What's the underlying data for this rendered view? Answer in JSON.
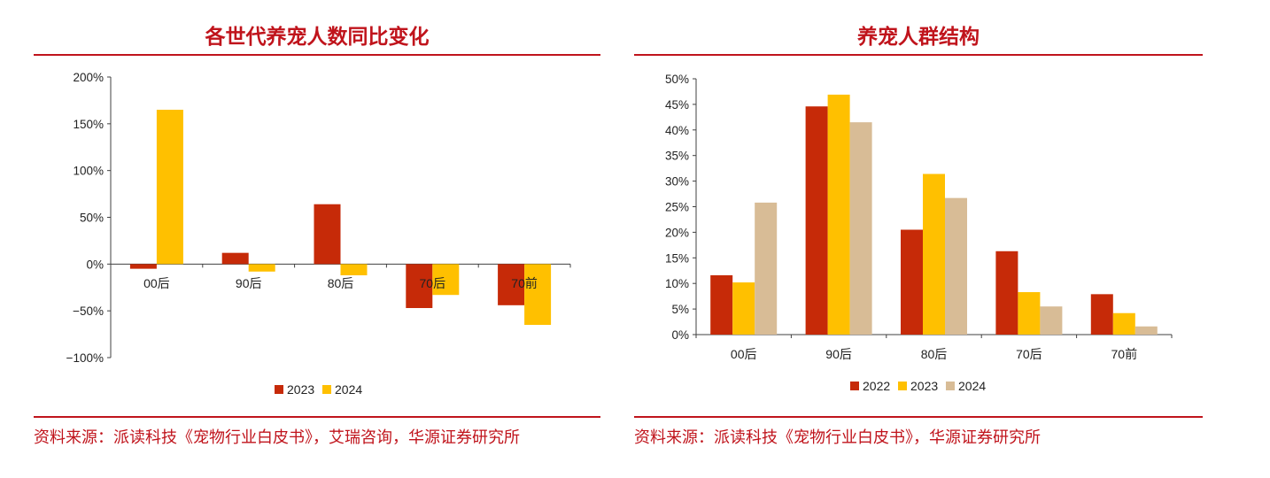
{
  "panels": {
    "left": {
      "title": "各世代养宠人数同比变化",
      "source": "资料来源：派读科技《宠物行业白皮书》，艾瑞咨询，华源证券研究所"
    },
    "right": {
      "title": "养宠人群结构",
      "source": "资料来源：派读科技《宠物行业白皮书》，华源证券研究所"
    }
  },
  "colors": {
    "accent": "#c0141c",
    "s2022": "#c62a08",
    "s2023_yellow": "#ffc000",
    "s2024_tan": "#d8bc96"
  },
  "chart_data": [
    {
      "type": "bar",
      "title": "各世代养宠人数同比变化",
      "categories": [
        "00后",
        "90后",
        "80后",
        "70后",
        "70前"
      ],
      "series": [
        {
          "name": "2023",
          "values": [
            -5,
            12,
            64,
            -47,
            -44
          ],
          "color": "#c62a08"
        },
        {
          "name": "2024",
          "values": [
            165,
            -8,
            -12,
            -33,
            -65
          ],
          "color": "#ffc000"
        }
      ],
      "ylim": [
        -100,
        200
      ],
      "yticks": [
        "200%",
        "150%",
        "100%",
        "50%",
        "0%",
        "−50%",
        "−100%"
      ],
      "grid": false,
      "legend": "bottom",
      "xlabel": "",
      "ylabel": ""
    },
    {
      "type": "bar",
      "title": "养宠人群结构",
      "categories": [
        "00后",
        "90后",
        "80后",
        "70后",
        "70前"
      ],
      "series": [
        {
          "name": "2022",
          "values": [
            11.6,
            44.6,
            20.5,
            16.3,
            7.9
          ],
          "color": "#c62a08"
        },
        {
          "name": "2023",
          "values": [
            10.2,
            46.9,
            31.4,
            8.3,
            4.2
          ],
          "color": "#ffc000"
        },
        {
          "name": "2024",
          "values": [
            25.8,
            41.5,
            26.7,
            5.5,
            1.6
          ],
          "color": "#d8bc96"
        }
      ],
      "ylim": [
        0,
        50
      ],
      "yticks": [
        "50%",
        "45%",
        "40%",
        "35%",
        "30%",
        "25%",
        "20%",
        "15%",
        "10%",
        "5%",
        "0%"
      ],
      "grid": false,
      "legend": "bottom",
      "xlabel": "",
      "ylabel": ""
    }
  ]
}
